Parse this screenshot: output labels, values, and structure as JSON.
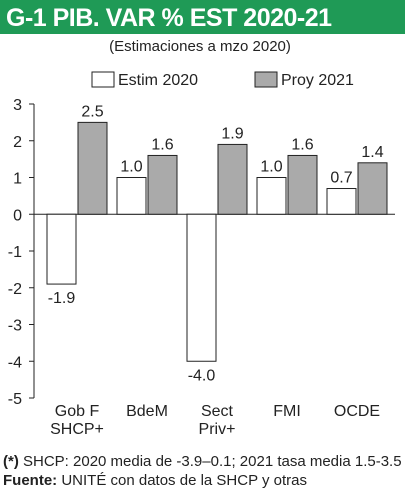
{
  "header": {
    "title": "G-1 PIB. VAR % EST 2020-21"
  },
  "chart_data": {
    "type": "bar",
    "subtitle": "(Estimaciones a mzo 2020)",
    "categories": [
      [
        "Gob F",
        "SHCP+"
      ],
      [
        "BdeM"
      ],
      [
        "Sect",
        "Priv+"
      ],
      [
        "FMI"
      ],
      [
        "OCDE"
      ]
    ],
    "series": [
      {
        "name": "Estim 2020",
        "values": [
          -1.9,
          1.0,
          -4.0,
          1.0,
          0.7
        ],
        "labels": [
          "-1.9",
          "1.0",
          "-4.0",
          "1.0",
          "0.7"
        ],
        "color": "#ffffff"
      },
      {
        "name": "Proy 2021",
        "values": [
          2.5,
          1.6,
          1.9,
          1.6,
          1.4
        ],
        "labels": [
          "2.5",
          "1.6",
          "1.9",
          "1.6",
          "1.4"
        ],
        "color": "#aaaaaa"
      }
    ],
    "yticks": [
      "3",
      "2",
      "1",
      "0",
      "-1",
      "-2",
      "-3",
      "-4",
      "-5"
    ],
    "ylim": [
      -5,
      3
    ],
    "legend": "top",
    "grid": false
  },
  "footnote": {
    "star": "(*)",
    "text1": " SHCP: 2020 media de -3.9–0.1; 2021 tasa media 1.5-3.5  ",
    "source_label": "Fuente:",
    "text2": " UNITÉ con datos de la SHCP y otras"
  },
  "colors": {
    "header_bg": "#1f9a56",
    "header_text": "#ffffff",
    "bar2020": "#ffffff",
    "bar2021": "#aaaaaa",
    "stroke": "#222222"
  }
}
